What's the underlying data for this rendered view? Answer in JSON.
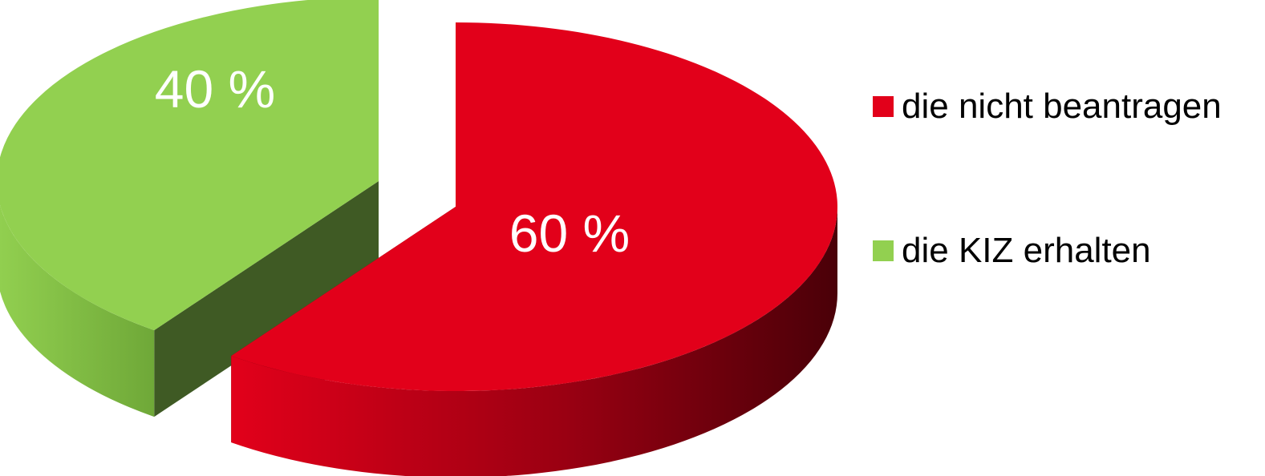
{
  "chart_data": {
    "type": "pie",
    "style": "3d-exploded",
    "title": "",
    "slices": [
      {
        "name": "die nicht beantragen",
        "value": 60,
        "label": "60 %",
        "color": "#e2001a",
        "side_dark": "#4a0008"
      },
      {
        "name": "die KIZ erhalten",
        "value": 40,
        "label": "40 %",
        "color": "#92d050",
        "side_dark": "#3f5a24"
      }
    ],
    "legend": {
      "position": "right",
      "items": [
        "die nicht beantragen",
        "die KIZ erhalten"
      ]
    }
  }
}
